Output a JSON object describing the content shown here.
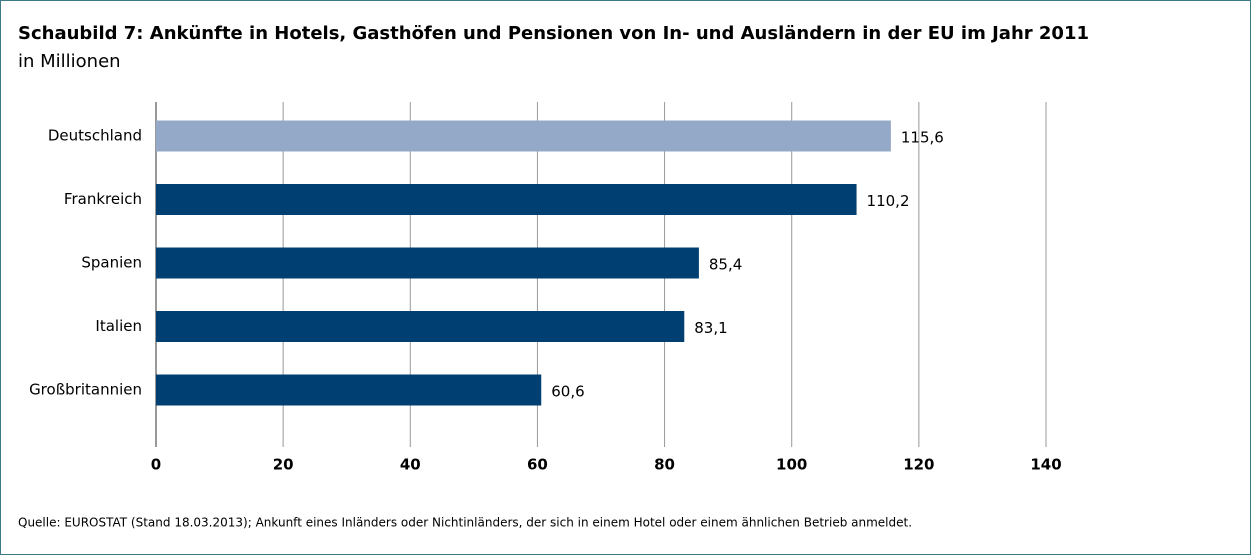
{
  "chart_data": {
    "type": "bar",
    "orientation": "horizontal",
    "title": "Schaubild 7: Ankünfte in Hotels, Gasthöfen und Pensionen von In- und Ausländern in der EU im Jahr 2011",
    "subtitle": "in Millionen",
    "categories": [
      "Deutschland",
      "Frankreich",
      "Spanien",
      "Italien",
      "Großbritannien"
    ],
    "values": [
      115.6,
      110.2,
      85.4,
      83.1,
      60.6
    ],
    "value_labels": [
      "115,6",
      "110,2",
      "85,4",
      "83,1",
      "60,6"
    ],
    "colors": [
      "#94a8c8",
      "#003f72",
      "#003f72",
      "#003f72",
      "#003f72"
    ],
    "xlim": [
      0,
      140
    ],
    "xticks": [
      0,
      20,
      40,
      60,
      80,
      100,
      120,
      140
    ],
    "grid": true,
    "source": "Quelle: EUROSTAT (Stand 18.03.2013); Ankunft eines Inländers oder Nichtinländers, der sich in einem Hotel oder einem ähnlichen Betrieb anmeldet."
  }
}
